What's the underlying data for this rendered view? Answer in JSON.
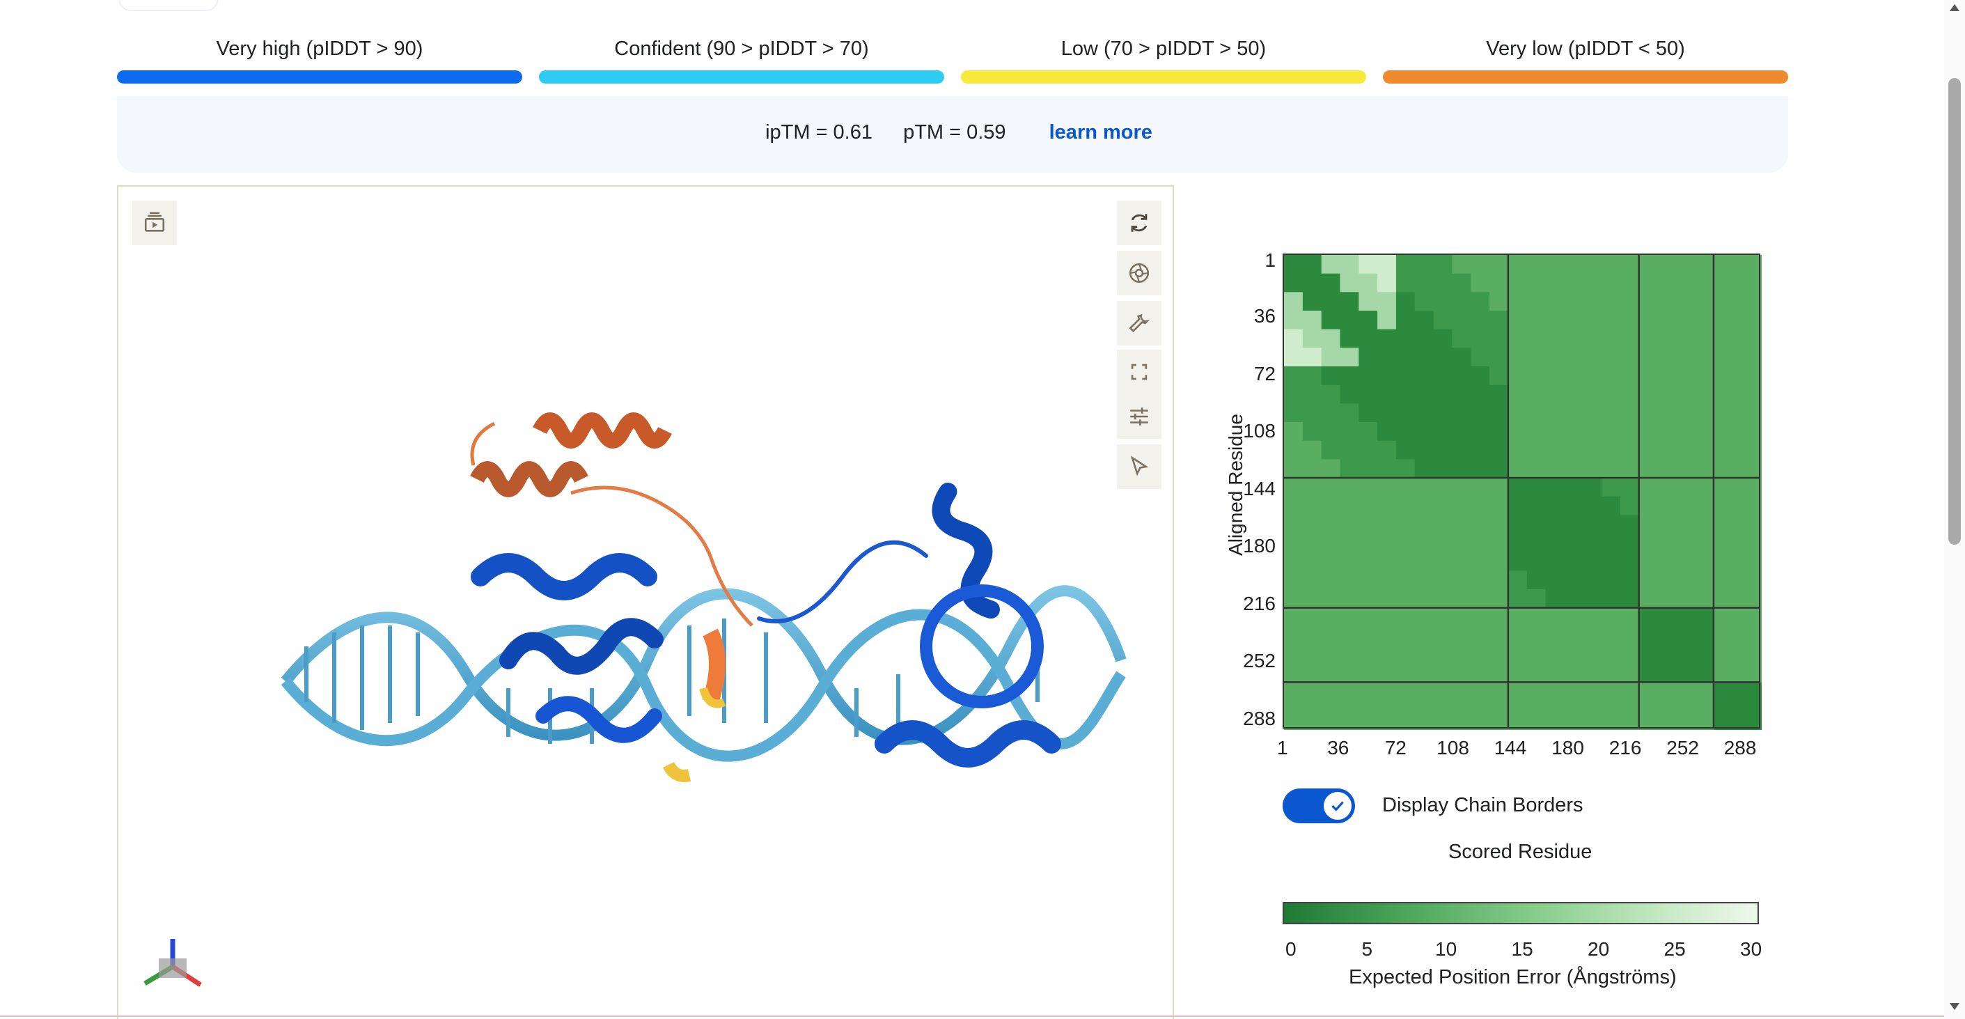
{
  "legend": [
    {
      "label": "Very high (pIDDT > 90)",
      "color": "#0b6cf2"
    },
    {
      "label": "Confident (90 > pIDDT > 70)",
      "color": "#2ecbf2"
    },
    {
      "label": "Low (70 > pIDDT > 50)",
      "color": "#f7ea3c"
    },
    {
      "label": "Very low (pIDDT < 50)",
      "color": "#ef8a2e"
    }
  ],
  "metrics": {
    "iptm": "ipTM = 0.61",
    "ptm": "pTM = 0.59",
    "learn_more": "learn more"
  },
  "viewer": {
    "toolbar_icons": [
      "sequence-panel-icon",
      "reset-camera-icon",
      "screenshot-icon",
      "settings-wrench-icon",
      "fullscreen-icon",
      "controls-icon",
      "select-mode-icon"
    ]
  },
  "pae": {
    "y_axis_label": "Aligned Residue",
    "x_axis_label": "Scored Residue",
    "ticks": [
      "1",
      "36",
      "72",
      "108",
      "144",
      "180",
      "216",
      "252",
      "288"
    ],
    "chain_borders_residues": [
      144,
      228,
      276,
      306
    ],
    "total_residues": 306
  },
  "toggle": {
    "label": "Display Chain Borders",
    "checked": true
  },
  "colorbar": {
    "ticks": [
      "0",
      "5",
      "10",
      "15",
      "20",
      "25",
      "30"
    ],
    "title": "Expected Position Error (Ångströms)",
    "colors": [
      "#1e7a34",
      "#eef8ec"
    ]
  }
}
